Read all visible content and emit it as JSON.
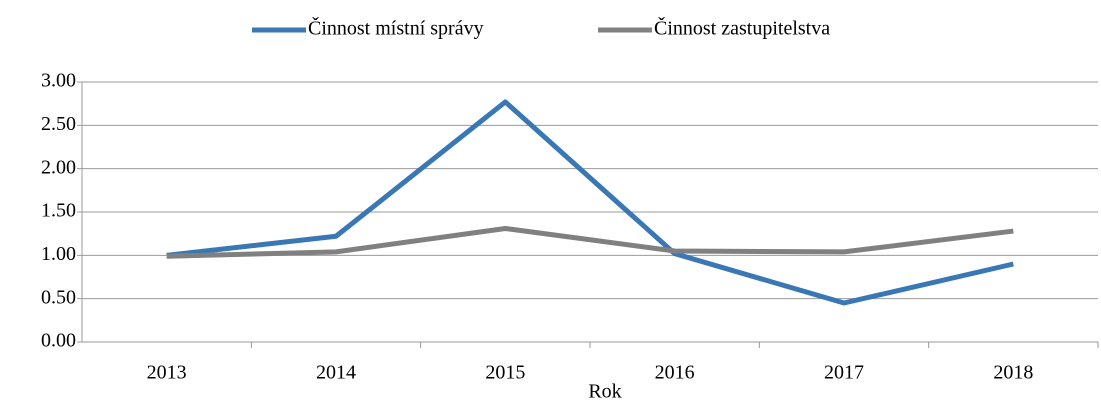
{
  "chart_data": {
    "type": "line",
    "categories": [
      "2013",
      "2014",
      "2015",
      "2016",
      "2017",
      "2018"
    ],
    "series": [
      {
        "name": "Činnost místní správy",
        "color": "#3a78b5",
        "values": [
          1.0,
          1.22,
          2.77,
          1.02,
          0.45,
          0.9
        ]
      },
      {
        "name": "Činnost zastupitelstva",
        "color": "#808080",
        "values": [
          0.99,
          1.04,
          1.31,
          1.05,
          1.04,
          1.28
        ]
      }
    ],
    "x_label": "Rok",
    "ylim": [
      0,
      3
    ],
    "yticks": [
      {
        "value": 0,
        "label": "0.00"
      },
      {
        "value": 0.5,
        "label": "0.50"
      },
      {
        "value": 1,
        "label": "1.00"
      },
      {
        "value": 1.5,
        "label": "1.50"
      },
      {
        "value": 2,
        "label": "2.00"
      },
      {
        "value": 2.5,
        "label": "2.50"
      },
      {
        "value": 3,
        "label": "3.00"
      }
    ],
    "grid": true,
    "legend": "top"
  }
}
